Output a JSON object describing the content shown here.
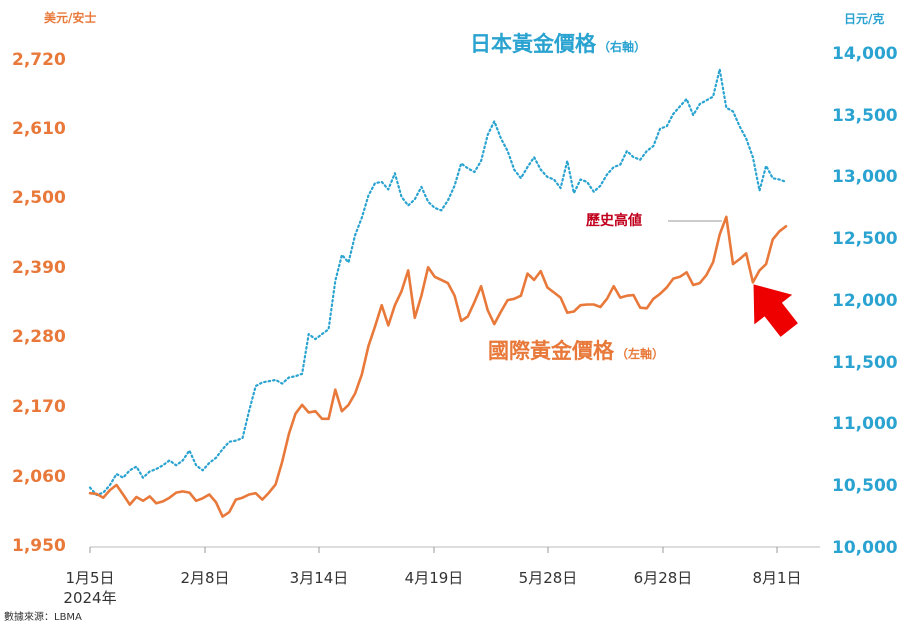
{
  "chart_data": {
    "type": "line",
    "y_left": {
      "unit": "美元/安士",
      "ticks": [
        "2,720",
        "2,610",
        "2,500",
        "2,390",
        "2,280",
        "2,170",
        "2,060",
        "1,950"
      ],
      "ylim": [
        1950,
        2720
      ]
    },
    "y_right": {
      "unit": "日元/克",
      "ticks": [
        "14,000",
        "13,500",
        "13,000",
        "12,500",
        "12,000",
        "11,500",
        "11,000",
        "10,500",
        "10,000"
      ],
      "ylim": [
        10000,
        14000
      ]
    },
    "x_axis": {
      "ticks": [
        "1月5日",
        "2月8日",
        "3月14日",
        "4月19日",
        "5月28日",
        "6月28日",
        "8月1日"
      ],
      "year_label": "2024年"
    },
    "source": "數據來源：LBMA",
    "series_titles": {
      "japan_main": "日本黃金價格",
      "japan_sub": "（右軸）",
      "intl_main": "國際黃金價格",
      "intl_sub": "（左軸）"
    },
    "annotation": "歷史高値",
    "series": [
      {
        "name": "日本黃金價格",
        "axis": "right",
        "color": "#2aa3d1",
        "style": "dotted",
        "points": [
          [
            0,
            10480
          ],
          [
            1,
            10420
          ],
          [
            2,
            10440
          ],
          [
            3,
            10500
          ],
          [
            4,
            10590
          ],
          [
            5,
            10560
          ],
          [
            6,
            10620
          ],
          [
            7,
            10650
          ],
          [
            8,
            10560
          ],
          [
            9,
            10610
          ],
          [
            10,
            10630
          ],
          [
            11,
            10660
          ],
          [
            12,
            10700
          ],
          [
            13,
            10660
          ],
          [
            14,
            10700
          ],
          [
            15,
            10780
          ],
          [
            16,
            10660
          ],
          [
            17,
            10620
          ],
          [
            18,
            10680
          ],
          [
            19,
            10720
          ],
          [
            20,
            10790
          ],
          [
            21,
            10850
          ],
          [
            22,
            10860
          ],
          [
            23,
            10880
          ],
          [
            24,
            11100
          ],
          [
            25,
            11300
          ],
          [
            26,
            11330
          ],
          [
            27,
            11340
          ],
          [
            28,
            11350
          ],
          [
            29,
            11320
          ],
          [
            30,
            11370
          ],
          [
            31,
            11380
          ],
          [
            32,
            11400
          ],
          [
            33,
            11720
          ],
          [
            34,
            11680
          ],
          [
            35,
            11720
          ],
          [
            36,
            11760
          ],
          [
            37,
            12150
          ],
          [
            38,
            12360
          ],
          [
            39,
            12300
          ],
          [
            40,
            12520
          ],
          [
            41,
            12660
          ],
          [
            42,
            12840
          ],
          [
            43,
            12940
          ],
          [
            44,
            12950
          ],
          [
            45,
            12890
          ],
          [
            46,
            13020
          ],
          [
            47,
            12830
          ],
          [
            48,
            12760
          ],
          [
            49,
            12810
          ],
          [
            50,
            12910
          ],
          [
            51,
            12790
          ],
          [
            52,
            12740
          ],
          [
            53,
            12720
          ],
          [
            54,
            12800
          ],
          [
            55,
            12920
          ],
          [
            56,
            13100
          ],
          [
            57,
            13060
          ],
          [
            58,
            13030
          ],
          [
            59,
            13120
          ],
          [
            60,
            13330
          ],
          [
            61,
            13440
          ],
          [
            62,
            13300
          ],
          [
            63,
            13200
          ],
          [
            64,
            13050
          ],
          [
            65,
            12980
          ],
          [
            66,
            13070
          ],
          [
            67,
            13150
          ],
          [
            68,
            13050
          ],
          [
            69,
            12990
          ],
          [
            70,
            12970
          ],
          [
            71,
            12900
          ],
          [
            72,
            13120
          ],
          [
            73,
            12860
          ],
          [
            74,
            12970
          ],
          [
            75,
            12950
          ],
          [
            76,
            12870
          ],
          [
            77,
            12920
          ],
          [
            78,
            13010
          ],
          [
            79,
            13070
          ],
          [
            80,
            13090
          ],
          [
            81,
            13200
          ],
          [
            82,
            13150
          ],
          [
            83,
            13130
          ],
          [
            84,
            13200
          ],
          [
            85,
            13240
          ],
          [
            86,
            13380
          ],
          [
            87,
            13400
          ],
          [
            88,
            13500
          ],
          [
            89,
            13560
          ],
          [
            90,
            13620
          ],
          [
            91,
            13490
          ],
          [
            92,
            13580
          ],
          [
            93,
            13610
          ],
          [
            94,
            13640
          ],
          [
            95,
            13860
          ],
          [
            96,
            13550
          ],
          [
            97,
            13520
          ],
          [
            98,
            13400
          ],
          [
            99,
            13300
          ],
          [
            100,
            13150
          ],
          [
            101,
            12880
          ],
          [
            102,
            13080
          ],
          [
            103,
            12980
          ],
          [
            104,
            12970
          ],
          [
            105,
            12950
          ]
        ]
      },
      {
        "name": "國際黃金價格",
        "axis": "left",
        "color": "#e8793a",
        "style": "solid",
        "points": [
          [
            0,
            2032
          ],
          [
            1,
            2031
          ],
          [
            2,
            2025
          ],
          [
            3,
            2037
          ],
          [
            4,
            2045
          ],
          [
            5,
            2030
          ],
          [
            6,
            2014
          ],
          [
            7,
            2026
          ],
          [
            8,
            2020
          ],
          [
            9,
            2027
          ],
          [
            10,
            2016
          ],
          [
            11,
            2019
          ],
          [
            12,
            2025
          ],
          [
            13,
            2033
          ],
          [
            14,
            2035
          ],
          [
            15,
            2033
          ],
          [
            16,
            2020
          ],
          [
            17,
            2024
          ],
          [
            18,
            2030
          ],
          [
            19,
            2018
          ],
          [
            20,
            1995
          ],
          [
            21,
            2002
          ],
          [
            22,
            2022
          ],
          [
            23,
            2025
          ],
          [
            24,
            2030
          ],
          [
            25,
            2032
          ],
          [
            26,
            2022
          ],
          [
            27,
            2033
          ],
          [
            28,
            2046
          ],
          [
            29,
            2082
          ],
          [
            30,
            2126
          ],
          [
            31,
            2158
          ],
          [
            32,
            2172
          ],
          [
            33,
            2160
          ],
          [
            34,
            2162
          ],
          [
            35,
            2150
          ],
          [
            36,
            2150
          ],
          [
            37,
            2196
          ],
          [
            38,
            2162
          ],
          [
            39,
            2172
          ],
          [
            40,
            2190
          ],
          [
            41,
            2220
          ],
          [
            42,
            2265
          ],
          [
            43,
            2296
          ],
          [
            44,
            2330
          ],
          [
            45,
            2298
          ],
          [
            46,
            2330
          ],
          [
            47,
            2352
          ],
          [
            48,
            2385
          ],
          [
            49,
            2310
          ],
          [
            50,
            2345
          ],
          [
            51,
            2390
          ],
          [
            52,
            2375
          ],
          [
            53,
            2370
          ],
          [
            54,
            2365
          ],
          [
            55,
            2345
          ],
          [
            56,
            2305
          ],
          [
            57,
            2312
          ],
          [
            58,
            2335
          ],
          [
            59,
            2360
          ],
          [
            60,
            2322
          ],
          [
            61,
            2300
          ],
          [
            62,
            2320
          ],
          [
            63,
            2338
          ],
          [
            64,
            2340
          ],
          [
            65,
            2345
          ],
          [
            66,
            2380
          ],
          [
            67,
            2370
          ],
          [
            68,
            2384
          ],
          [
            69,
            2358
          ],
          [
            70,
            2350
          ],
          [
            71,
            2342
          ],
          [
            72,
            2318
          ],
          [
            73,
            2320
          ],
          [
            74,
            2330
          ],
          [
            75,
            2331
          ],
          [
            76,
            2331
          ],
          [
            77,
            2327
          ],
          [
            78,
            2340
          ],
          [
            79,
            2360
          ],
          [
            80,
            2342
          ],
          [
            81,
            2345
          ],
          [
            82,
            2346
          ],
          [
            83,
            2326
          ],
          [
            84,
            2325
          ],
          [
            85,
            2340
          ],
          [
            86,
            2348
          ],
          [
            87,
            2358
          ],
          [
            88,
            2372
          ],
          [
            89,
            2375
          ],
          [
            90,
            2382
          ],
          [
            91,
            2362
          ],
          [
            92,
            2365
          ],
          [
            93,
            2378
          ],
          [
            94,
            2398
          ],
          [
            95,
            2442
          ],
          [
            96,
            2470
          ],
          [
            97,
            2395
          ],
          [
            98,
            2403
          ],
          [
            99,
            2412
          ],
          [
            100,
            2366
          ],
          [
            101,
            2385
          ],
          [
            102,
            2395
          ],
          [
            103,
            2434
          ],
          [
            104,
            2447
          ],
          [
            105,
            2455
          ]
        ]
      }
    ]
  }
}
